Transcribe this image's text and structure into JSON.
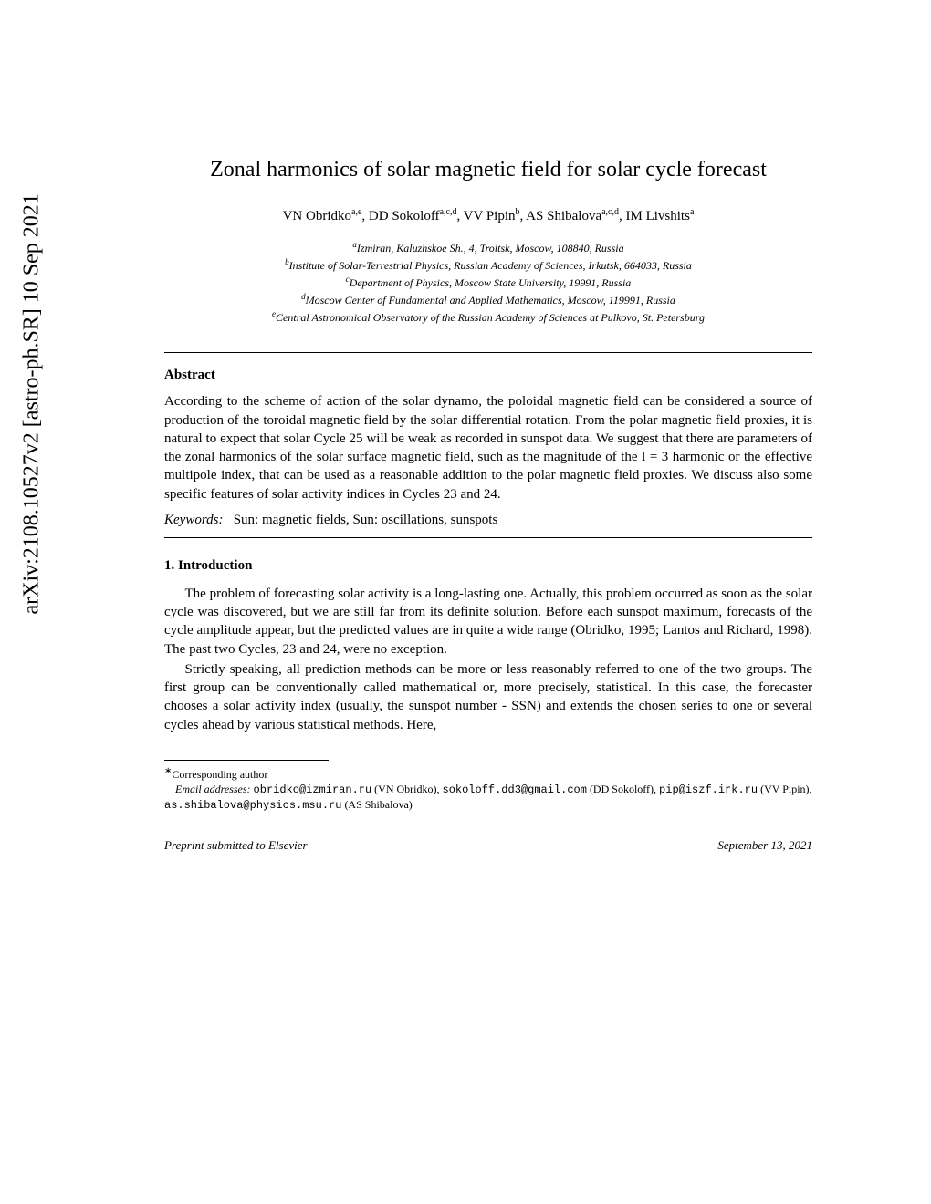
{
  "arxiv": {
    "identifier": "arXiv:2108.10527v2 [astro-ph.SR] 10 Sep 2021"
  },
  "paper": {
    "title": "Zonal harmonics of solar magnetic field for solar cycle forecast",
    "authors_html": "VN Obridko<sup class=\"sup\">a,e</sup>, DD Sokoloff<sup class=\"sup\">a,c,d</sup>, VV Pipin<sup class=\"sup\">b</sup>, AS Shibalova<sup class=\"sup\">a,c,d</sup>, IM Livshits<sup class=\"sup\">a</sup>",
    "affiliations": {
      "a": "Izmiran, Kaluzhskoe Sh., 4, Troitsk, Moscow, 108840, Russia",
      "b": "Institute of Solar-Terrestrial Physics, Russian Academy of Sciences, Irkutsk, 664033, Russia",
      "c": "Department of Physics, Moscow State University, 19991, Russia",
      "d": "Moscow Center of Fundamental and Applied Mathematics, Moscow, 119991, Russia",
      "e": "Central Astronomical Observatory of the Russian Academy of Sciences at Pulkovo, St. Petersburg"
    },
    "abstract": {
      "heading": "Abstract",
      "text": "According to the scheme of action of the solar dynamo, the poloidal magnetic field can be considered a source of production of the toroidal magnetic field by the solar differential rotation. From the polar magnetic field proxies, it is natural to expect that solar Cycle 25 will be weak as recorded in sunspot data. We suggest that there are parameters of the zonal harmonics of the solar surface magnetic field, such as the magnitude of the l = 3 harmonic or the effective multipole index, that can be used as a reasonable addition to the polar magnetic field proxies. We discuss also some specific features of solar activity indices in Cycles 23 and 24."
    },
    "keywords": {
      "label": "Keywords:",
      "text": "Sun: magnetic fields, Sun: oscillations, sunspots"
    },
    "section1": {
      "heading": "1. Introduction",
      "para1": "The problem of forecasting solar activity is a long-lasting one. Actually, this problem occurred as soon as the solar cycle was discovered, but we are still far from its definite solution. Before each sunspot maximum, forecasts of the cycle amplitude appear, but the predicted values are in quite a wide range (Obridko, 1995; Lantos and Richard, 1998). The past two Cycles, 23 and 24, were no exception.",
      "para2": "Strictly speaking, all prediction methods can be more or less reasonably referred to one of the two groups. The first group can be conventionally called mathematical or, more precisely, statistical. In this case, the forecaster chooses a solar activity index (usually, the sunspot number - SSN) and extends the chosen series to one or several cycles ahead by various statistical methods. Here,"
    },
    "footnotes": {
      "corresponding": "Corresponding author",
      "emails_label": "Email addresses:",
      "email1": "obridko@izmiran.ru",
      "author1": "(VN Obridko),",
      "email2": "sokoloff.dd3@gmail.com",
      "author2": "(DD Sokoloff),",
      "email3": "pip@iszf.irk.ru",
      "author3": "(VV Pipin),",
      "email4": "as.shibalova@physics.msu.ru",
      "author4": "(AS Shibalova)"
    },
    "footer": {
      "preprint": "Preprint submitted to Elsevier",
      "date": "September 13, 2021"
    }
  },
  "colors": {
    "text": "#000000",
    "background": "#ffffff"
  },
  "typography": {
    "title_fontsize": 24,
    "body_fontsize": 15,
    "affil_fontsize": 12,
    "footnote_fontsize": 12,
    "arxiv_fontsize": 24
  }
}
